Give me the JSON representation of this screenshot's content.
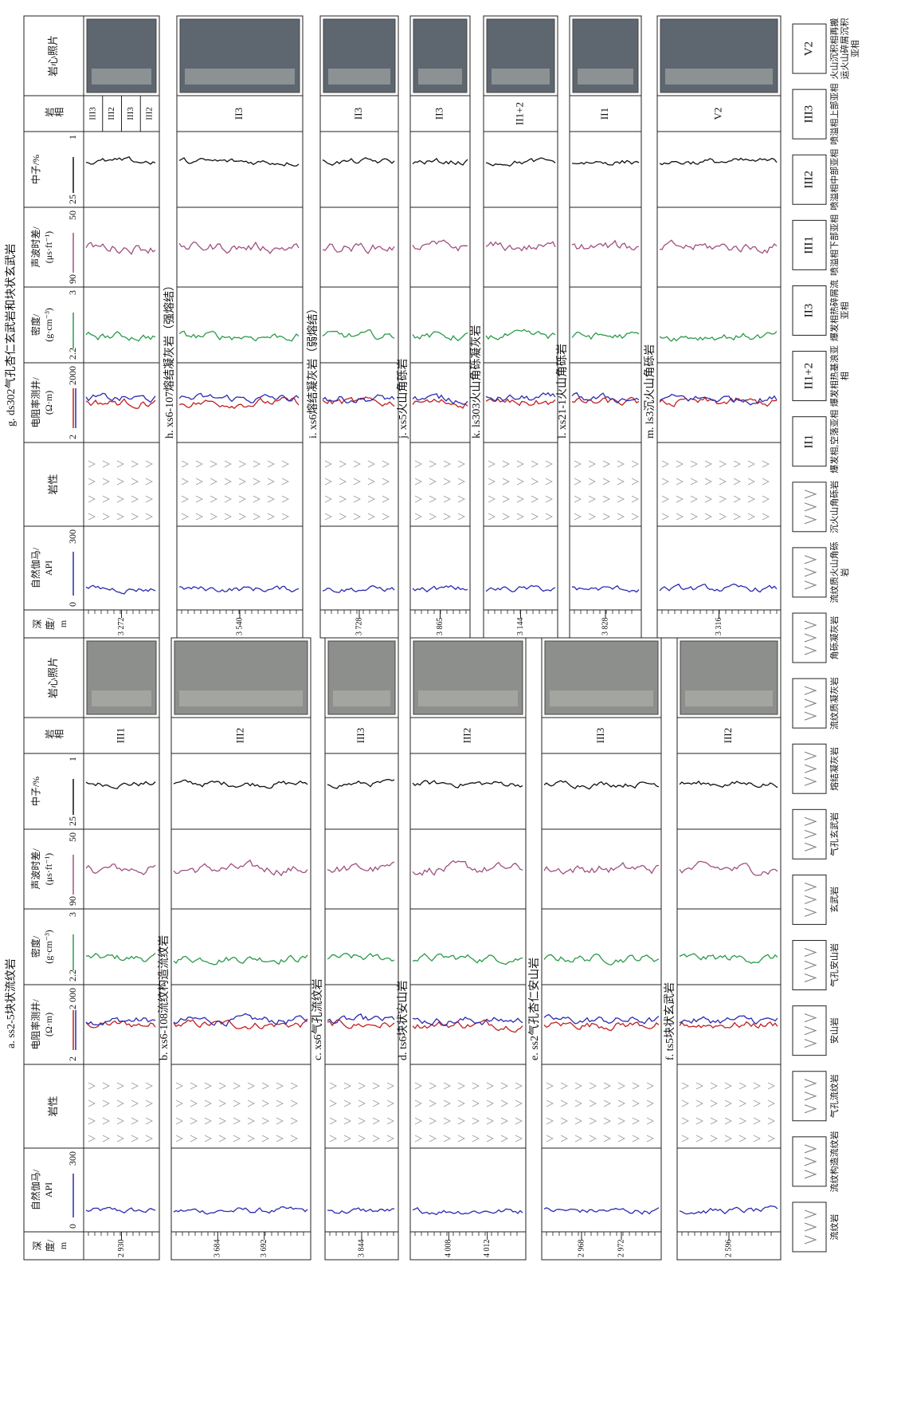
{
  "left_half": {
    "header": {
      "depth": [
        "深",
        "度/",
        "m"
      ],
      "gamma": [
        "自然伽马/",
        "API"
      ],
      "gamma_scale": [
        "0",
        "300"
      ],
      "lithology": "岩性",
      "resistivity": [
        "电阻率测井/",
        "(Ω·m)"
      ],
      "resistivity_scale": [
        "2",
        "2 000"
      ],
      "density": [
        "密度/",
        "(g·cm⁻³)"
      ],
      "density_scale": [
        "2.2",
        "3"
      ],
      "sonic": [
        "声波时差/",
        "(μs·ft⁻¹)"
      ],
      "sonic_scale": [
        "90",
        "50"
      ],
      "neutron": [
        "中子/%"
      ],
      "neutron_scale": [
        "25",
        "1"
      ],
      "facies": "岩相",
      "photo": "岩心照片"
    },
    "panels": [
      {
        "title": "a. ss2-5块状流纹岩",
        "depths": [
          "2 930"
        ],
        "facies": [
          "III1"
        ]
      },
      {
        "title": "b. xs6-108流纹构造流纹岩",
        "depths": [
          "3 684",
          "3 692"
        ],
        "facies": [
          "III2"
        ]
      },
      {
        "title": "c. xs6气孔流纹岩",
        "depths": [
          "3 844"
        ],
        "facies": [
          "III3"
        ]
      },
      {
        "title": "d. ts6块状安山岩",
        "depths": [
          "4 008",
          "4 012"
        ],
        "facies": [
          "III2"
        ]
      },
      {
        "title": "e. ss2气孔杏仁安山岩",
        "depths": [
          "2 968",
          "2 972"
        ],
        "facies": [
          "III3"
        ]
      },
      {
        "title": "f. ts5块状玄武岩",
        "depths": [
          "2 596"
        ],
        "facies": [
          "III2"
        ]
      }
    ]
  },
  "right_half": {
    "header": {
      "depth": [
        "深",
        "度/",
        "m"
      ],
      "gamma": [
        "自然伽马/",
        "API"
      ],
      "gamma_scale": [
        "0",
        "300"
      ],
      "lithology": "岩性",
      "resistivity": [
        "电阻率测井/",
        "(Ω·m)"
      ],
      "resistivity_scale": [
        "2",
        "2000"
      ],
      "density": [
        "密度/",
        "(g·cm⁻³)"
      ],
      "density_scale": [
        "2.2",
        "3"
      ],
      "sonic": [
        "声波时差/",
        "(μs·ft⁻¹)"
      ],
      "sonic_scale": [
        "90",
        "50"
      ],
      "neutron": [
        "中子/%"
      ],
      "neutron_scale": [
        "25",
        "1"
      ],
      "facies": "岩相",
      "photo": "岩心照片"
    },
    "panels": [
      {
        "title": "g. ds302气孔杏仁玄武岩和块状玄武岩",
        "depths": [
          "3 272"
        ],
        "facies": [
          "III3",
          "III2",
          "III3",
          "III2"
        ]
      },
      {
        "title": "h. xs6-107熔结凝灰岩（强熔结）",
        "depths": [
          "3 540"
        ],
        "facies": [
          "II3"
        ]
      },
      {
        "title": "i. xs6熔结凝灰岩（弱熔结）",
        "depths": [
          "3 728"
        ],
        "facies": [
          "II3"
        ]
      },
      {
        "title": "j. xs5火山角砾岩",
        "depths": [
          "3 865"
        ],
        "facies": [
          "II3"
        ]
      },
      {
        "title": "k. ls303火山角砾凝灰岩",
        "depths": [
          "3 144"
        ],
        "facies": [
          "II1+2"
        ]
      },
      {
        "title": "l. xs21-1火山角砾岩",
        "depths": [
          "3 828"
        ],
        "facies": [
          "II1"
        ]
      },
      {
        "title": "m. ls3沉火山角砾岩",
        "depths": [
          "3 316"
        ],
        "facies": [
          "V2"
        ]
      }
    ]
  },
  "legend": {
    "lithology": [
      "流纹岩",
      "流纹构造流纹岩",
      "气孔流纹岩",
      "安山岩",
      "气孔安山岩",
      "玄武岩",
      "气孔玄武岩",
      "熔结凝灰岩",
      "流纹质凝灰岩",
      "角砾凝灰岩",
      "流纹质火山角砾岩",
      "沉火山角砾岩"
    ],
    "facies": [
      {
        "code": "II1",
        "label": "爆发相,空落亚相"
      },
      {
        "code": "II1+2",
        "label": "爆发相热基浪亚相"
      },
      {
        "code": "II3",
        "label": "爆发相热碎屑流亚相"
      },
      {
        "code": "III1",
        "label": "喷溢相下部亚相"
      },
      {
        "code": "III2",
        "label": "喷溢相中部亚相"
      },
      {
        "code": "III3",
        "label": "喷溢相上部亚相"
      },
      {
        "code": "V2",
        "label": "火山沉积相再搬运火山碎屑沉积亚相"
      }
    ]
  }
}
